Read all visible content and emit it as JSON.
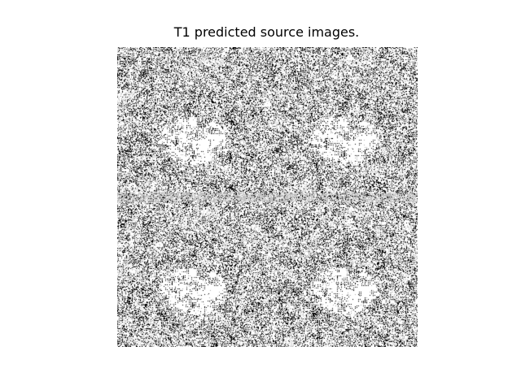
{
  "figure": {
    "title": "T1 predicted source images."
  },
  "image": {
    "description_tiles": "2x2 grid of noisy black and white brain-slice-like patterns",
    "colors": {
      "foreground": "#000000",
      "background": "#ffffff"
    }
  }
}
